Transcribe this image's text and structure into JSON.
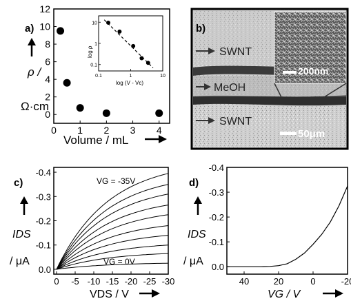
{
  "panels": {
    "a": {
      "label": "a)",
      "ylabel": "ρ /",
      "yunit": "Ω·cm",
      "xlabel": "Volume / mL",
      "inset": {
        "ylabel": "log ρ",
        "xlabel": "log (V - Vc)"
      }
    },
    "b": {
      "label": "b)",
      "annotations": [
        "SWNT",
        "MeOH",
        "SWNT"
      ],
      "scale_main": "50μm",
      "scale_inset": "200nm"
    },
    "c": {
      "label": "c)",
      "ylabel": "IDS",
      "yunit": "/ μA",
      "xlabel": "VDS / V",
      "top_curve_label": "VG = -35V",
      "bottom_curve_label": "VG = 0V"
    },
    "d": {
      "label": "d)",
      "ylabel": "IDS",
      "yunit": "/ μA",
      "xlabel": "VG / V"
    }
  },
  "chart_data": [
    {
      "panel": "a",
      "type": "scatter",
      "xlabel": "Volume / mL",
      "ylabel": "ρ / Ω·cm",
      "xlim": [
        0,
        4.4
      ],
      "ylim": [
        -1,
        12
      ],
      "xticks": [
        0,
        1,
        2,
        3,
        4
      ],
      "yticks": [
        0,
        2,
        4,
        6,
        8,
        10,
        12
      ],
      "x": [
        0.25,
        0.5,
        1.0,
        2.0,
        4.0
      ],
      "y": [
        9.5,
        3.6,
        0.75,
        0.15,
        0.15
      ]
    },
    {
      "panel": "a-inset",
      "type": "scatter",
      "scale": "log-log",
      "xlabel": "log (V - Vc)",
      "ylabel": "log ρ",
      "xlim": [
        0.1,
        10
      ],
      "ylim": [
        0.05,
        20
      ],
      "xtick_labels": [
        "0.1",
        "1",
        "10"
      ],
      "ytick_labels": [
        "0.1",
        "1",
        "10"
      ],
      "x": [
        0.2,
        0.45,
        1.2,
        2.2,
        3.5
      ],
      "y": [
        9.5,
        3.6,
        0.75,
        0.2,
        0.12
      ],
      "fit_line": "dashed"
    },
    {
      "panel": "c",
      "type": "line",
      "xlabel": "VDS / V",
      "ylabel": "IDS / μA",
      "xlim": [
        0,
        -30
      ],
      "ylim": [
        0.02,
        -0.42
      ],
      "xticks": [
        0,
        -5,
        -10,
        -15,
        -20,
        -25,
        -30
      ],
      "yticks": [
        0.0,
        -0.1,
        -0.2,
        -0.3,
        -0.4
      ],
      "series": [
        {
          "x": [
            0,
            -30
          ],
          "y": [
            0,
            -0.025
          ]
        },
        {
          "x": [
            0,
            -30
          ],
          "y": [
            0,
            -0.065
          ]
        },
        {
          "x": [
            0,
            -30
          ],
          "y": [
            0,
            -0.1
          ]
        },
        {
          "x": [
            0,
            -30
          ],
          "y": [
            0,
            -0.14
          ]
        },
        {
          "x": [
            0,
            -30
          ],
          "y": [
            0,
            -0.18
          ]
        },
        {
          "x": [
            0,
            -30
          ],
          "y": [
            0,
            -0.225
          ]
        },
        {
          "x": [
            0,
            -30
          ],
          "y": [
            0,
            -0.265
          ]
        },
        {
          "x": [
            0,
            -30
          ],
          "y": [
            0,
            -0.31
          ]
        },
        {
          "x": [
            0,
            -30
          ],
          "y": [
            0,
            -0.35
          ]
        },
        {
          "x": [
            0,
            -30
          ],
          "y": [
            0,
            -0.395
          ]
        }
      ]
    },
    {
      "panel": "d",
      "type": "line",
      "xlabel": "VG / V",
      "ylabel": "IDS / μA",
      "xlim": [
        50,
        -20
      ],
      "ylim": [
        0.03,
        -0.4
      ],
      "xticks": [
        40,
        20,
        0,
        -20
      ],
      "yticks": [
        0.0,
        -0.1,
        -0.2,
        -0.3,
        -0.4
      ],
      "series": [
        {
          "x": [
            50,
            40,
            30,
            25,
            20,
            15,
            10,
            5,
            0,
            -5,
            -10,
            -15,
            -20
          ],
          "y": [
            0,
            0,
            0,
            -0.001,
            -0.004,
            -0.012,
            -0.03,
            -0.055,
            -0.09,
            -0.13,
            -0.18,
            -0.245,
            -0.325
          ]
        }
      ]
    }
  ]
}
